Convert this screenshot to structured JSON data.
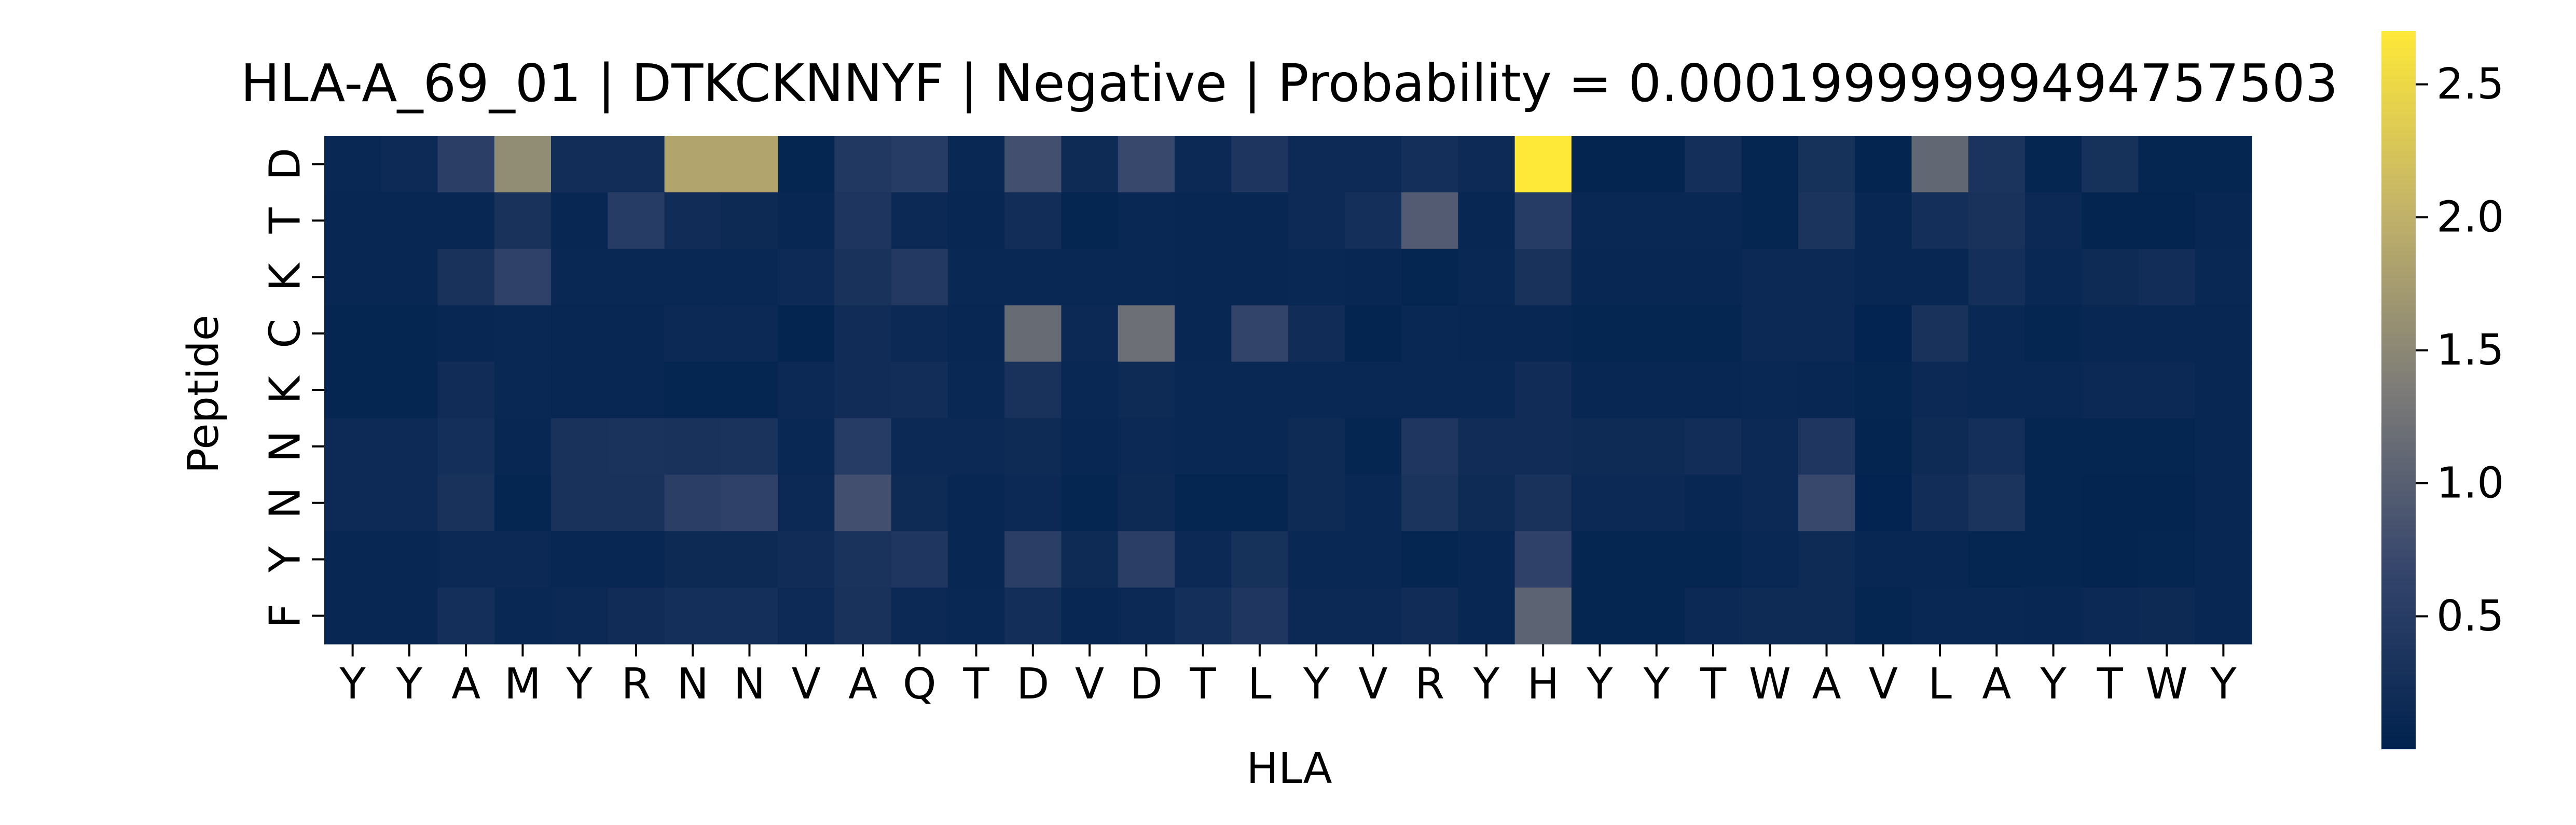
{
  "chart_data": {
    "type": "heatmap",
    "title": "HLA-A_69_01 | DTKCKNNYF | Negative | Probability = 0.00019999999494757503",
    "xlabel": "HLA",
    "ylabel": "Peptide",
    "x_categories": [
      "Y",
      "Y",
      "A",
      "M",
      "Y",
      "R",
      "N",
      "N",
      "V",
      "A",
      "Q",
      "T",
      "D",
      "V",
      "D",
      "T",
      "L",
      "Y",
      "V",
      "R",
      "Y",
      "H",
      "Y",
      "Y",
      "T",
      "W",
      "A",
      "V",
      "L",
      "A",
      "Y",
      "T",
      "W",
      "Y"
    ],
    "y_categories": [
      "D",
      "T",
      "K",
      "C",
      "K",
      "N",
      "N",
      "Y",
      "F"
    ],
    "colormap": "cividis",
    "vmin": 0.0,
    "vmax": 2.7,
    "colorbar_ticks": [
      0.5,
      1.0,
      1.5,
      2.0,
      2.5
    ],
    "values": [
      [
        0.12,
        0.15,
        0.55,
        1.55,
        0.22,
        0.22,
        1.85,
        1.85,
        0.08,
        0.42,
        0.5,
        0.12,
        0.8,
        0.18,
        0.7,
        0.14,
        0.38,
        0.15,
        0.15,
        0.25,
        0.15,
        2.7,
        0.06,
        0.06,
        0.25,
        0.08,
        0.28,
        0.05,
        1.1,
        0.35,
        0.08,
        0.28,
        0.08,
        0.08
      ],
      [
        0.1,
        0.1,
        0.1,
        0.3,
        0.1,
        0.5,
        0.2,
        0.16,
        0.1,
        0.38,
        0.14,
        0.1,
        0.22,
        0.08,
        0.12,
        0.1,
        0.1,
        0.15,
        0.25,
        0.95,
        0.1,
        0.5,
        0.12,
        0.12,
        0.12,
        0.08,
        0.35,
        0.1,
        0.25,
        0.3,
        0.14,
        0.06,
        0.06,
        0.1
      ],
      [
        0.1,
        0.1,
        0.3,
        0.6,
        0.12,
        0.12,
        0.12,
        0.12,
        0.15,
        0.3,
        0.45,
        0.12,
        0.12,
        0.12,
        0.12,
        0.1,
        0.1,
        0.12,
        0.1,
        0.08,
        0.12,
        0.3,
        0.1,
        0.1,
        0.1,
        0.14,
        0.14,
        0.1,
        0.1,
        0.25,
        0.12,
        0.18,
        0.22,
        0.12
      ],
      [
        0.08,
        0.08,
        0.1,
        0.12,
        0.1,
        0.1,
        0.14,
        0.14,
        0.06,
        0.2,
        0.14,
        0.1,
        1.15,
        0.14,
        1.2,
        0.1,
        0.65,
        0.2,
        0.06,
        0.12,
        0.1,
        0.1,
        0.08,
        0.08,
        0.08,
        0.14,
        0.14,
        0.04,
        0.3,
        0.12,
        0.08,
        0.1,
        0.1,
        0.1
      ],
      [
        0.08,
        0.08,
        0.2,
        0.12,
        0.1,
        0.1,
        0.08,
        0.08,
        0.14,
        0.2,
        0.22,
        0.12,
        0.3,
        0.12,
        0.18,
        0.12,
        0.12,
        0.12,
        0.12,
        0.12,
        0.12,
        0.2,
        0.1,
        0.1,
        0.1,
        0.12,
        0.1,
        0.08,
        0.14,
        0.12,
        0.12,
        0.14,
        0.14,
        0.1
      ],
      [
        0.15,
        0.15,
        0.25,
        0.1,
        0.3,
        0.32,
        0.3,
        0.32,
        0.12,
        0.5,
        0.14,
        0.14,
        0.18,
        0.1,
        0.14,
        0.12,
        0.12,
        0.18,
        0.08,
        0.4,
        0.2,
        0.2,
        0.18,
        0.18,
        0.22,
        0.14,
        0.4,
        0.05,
        0.18,
        0.25,
        0.08,
        0.08,
        0.08,
        0.1
      ],
      [
        0.15,
        0.15,
        0.3,
        0.08,
        0.3,
        0.3,
        0.55,
        0.6,
        0.14,
        0.8,
        0.18,
        0.1,
        0.14,
        0.08,
        0.16,
        0.08,
        0.08,
        0.18,
        0.12,
        0.35,
        0.18,
        0.3,
        0.14,
        0.14,
        0.1,
        0.14,
        0.7,
        0.04,
        0.22,
        0.35,
        0.08,
        0.06,
        0.06,
        0.1
      ],
      [
        0.1,
        0.1,
        0.14,
        0.14,
        0.1,
        0.1,
        0.16,
        0.16,
        0.2,
        0.32,
        0.4,
        0.1,
        0.55,
        0.18,
        0.55,
        0.14,
        0.28,
        0.12,
        0.12,
        0.08,
        0.1,
        0.6,
        0.08,
        0.08,
        0.08,
        0.12,
        0.18,
        0.1,
        0.1,
        0.08,
        0.08,
        0.06,
        0.08,
        0.1
      ],
      [
        0.1,
        0.1,
        0.25,
        0.12,
        0.14,
        0.2,
        0.25,
        0.25,
        0.15,
        0.3,
        0.14,
        0.12,
        0.24,
        0.1,
        0.14,
        0.25,
        0.4,
        0.14,
        0.14,
        0.2,
        0.1,
        1.05,
        0.08,
        0.08,
        0.14,
        0.18,
        0.18,
        0.08,
        0.12,
        0.12,
        0.1,
        0.14,
        0.16,
        0.1
      ]
    ]
  }
}
